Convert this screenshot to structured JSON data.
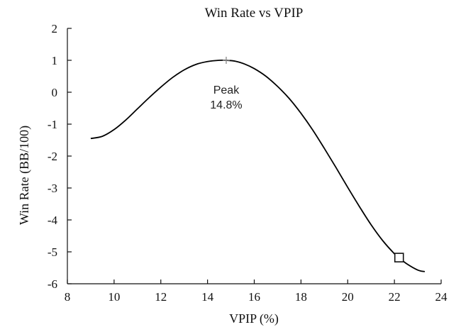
{
  "chart_data": {
    "type": "line",
    "title": "Win Rate vs VPIP",
    "xlabel": "VPIP (%)",
    "ylabel": "Win Rate (BB/100)",
    "xlim": [
      8,
      24
    ],
    "ylim": [
      -6,
      2
    ],
    "xticks": [
      8,
      10,
      12,
      14,
      16,
      18,
      20,
      22,
      24
    ],
    "yticks": [
      2,
      1,
      0,
      -1,
      -2,
      -3,
      -4,
      -5,
      -6
    ],
    "grid": false,
    "series": [
      {
        "x": [
          9.0,
          9.5,
          10.0,
          10.5,
          11.0,
          11.5,
          12.0,
          12.5,
          13.0,
          13.5,
          14.0,
          14.5,
          14.8,
          15.2,
          15.6,
          16.0,
          16.5,
          17.0,
          17.5,
          18.0,
          18.5,
          19.0,
          19.5,
          20.0,
          20.5,
          21.0,
          21.5,
          22.0,
          22.2,
          22.5,
          23.0,
          23.3
        ],
        "y": [
          -1.45,
          -1.38,
          -1.17,
          -0.87,
          -0.52,
          -0.17,
          0.16,
          0.46,
          0.7,
          0.87,
          0.96,
          1.0,
          1.0,
          0.97,
          0.88,
          0.74,
          0.5,
          0.18,
          -0.2,
          -0.66,
          -1.18,
          -1.76,
          -2.36,
          -2.98,
          -3.58,
          -4.15,
          -4.65,
          -5.06,
          -5.18,
          -5.36,
          -5.57,
          -5.62
        ],
        "color": "#000000"
      }
    ],
    "markers": [
      {
        "shape": "plus",
        "x": 14.8,
        "y": 1.0
      },
      {
        "shape": "square",
        "x": 22.2,
        "y": -5.18
      }
    ],
    "annotations": [
      {
        "line1": "Peak",
        "line2": "14.8%",
        "x": 14.8,
        "y": 1.0
      }
    ]
  }
}
